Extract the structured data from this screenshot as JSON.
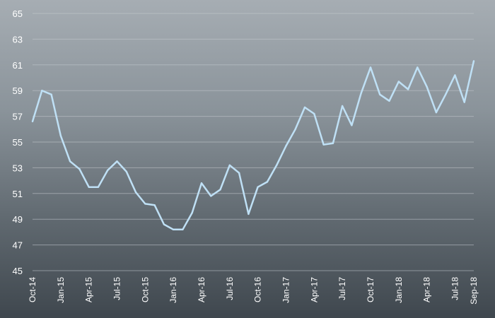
{
  "chart_data": {
    "type": "line",
    "title": "",
    "xlabel": "",
    "ylabel": "",
    "ylim": [
      45,
      65
    ],
    "y_ticks": [
      45,
      47,
      49,
      51,
      53,
      55,
      57,
      59,
      61,
      63,
      65
    ],
    "grid": true,
    "legend": "none",
    "colors": {
      "line": "#bfe0f5",
      "grid": "#c5cbd0",
      "text": "#ffffff"
    },
    "x_tick_labels": [
      "Oct-14",
      "Jan-15",
      "Apr-15",
      "Jul-15",
      "Oct-15",
      "Jan-16",
      "Apr-16",
      "Jul-16",
      "Oct-16",
      "Jan-17",
      "Apr-17",
      "Jul-17",
      "Oct-17",
      "Jan-18",
      "Apr-18",
      "Jul-18",
      "Sep-18"
    ],
    "x": [
      "Oct-14",
      "Nov-14",
      "Dec-14",
      "Jan-15",
      "Feb-15",
      "Mar-15",
      "Apr-15",
      "May-15",
      "Jun-15",
      "Jul-15",
      "Aug-15",
      "Sep-15",
      "Oct-15",
      "Nov-15",
      "Dec-15",
      "Jan-16",
      "Feb-16",
      "Mar-16",
      "Apr-16",
      "May-16",
      "Jun-16",
      "Jul-16",
      "Aug-16",
      "Sep-16",
      "Oct-16",
      "Nov-16",
      "Dec-16",
      "Jan-17",
      "Feb-17",
      "Mar-17",
      "Apr-17",
      "May-17",
      "Jun-17",
      "Jul-17",
      "Aug-17",
      "Sep-17",
      "Oct-17",
      "Nov-17",
      "Dec-17",
      "Jan-18",
      "Feb-18",
      "Mar-18",
      "Apr-18",
      "May-18",
      "Jun-18",
      "Jul-18",
      "Aug-18",
      "Sep-18"
    ],
    "series": [
      {
        "values": [
          56.6,
          59.0,
          58.7,
          55.5,
          53.5,
          52.9,
          51.5,
          51.5,
          52.8,
          53.5,
          52.7,
          51.1,
          50.2,
          50.1,
          48.6,
          48.2,
          48.2,
          49.5,
          51.8,
          50.8,
          51.3,
          53.2,
          52.6,
          49.4,
          51.5,
          51.9,
          53.2,
          54.7,
          56.0,
          57.7,
          57.2,
          54.8,
          54.9,
          57.8,
          56.3,
          58.8,
          60.8,
          58.7,
          58.2,
          59.7,
          59.1,
          60.8,
          59.3,
          57.3,
          58.7,
          60.2,
          58.1,
          61.3
        ]
      }
    ]
  }
}
